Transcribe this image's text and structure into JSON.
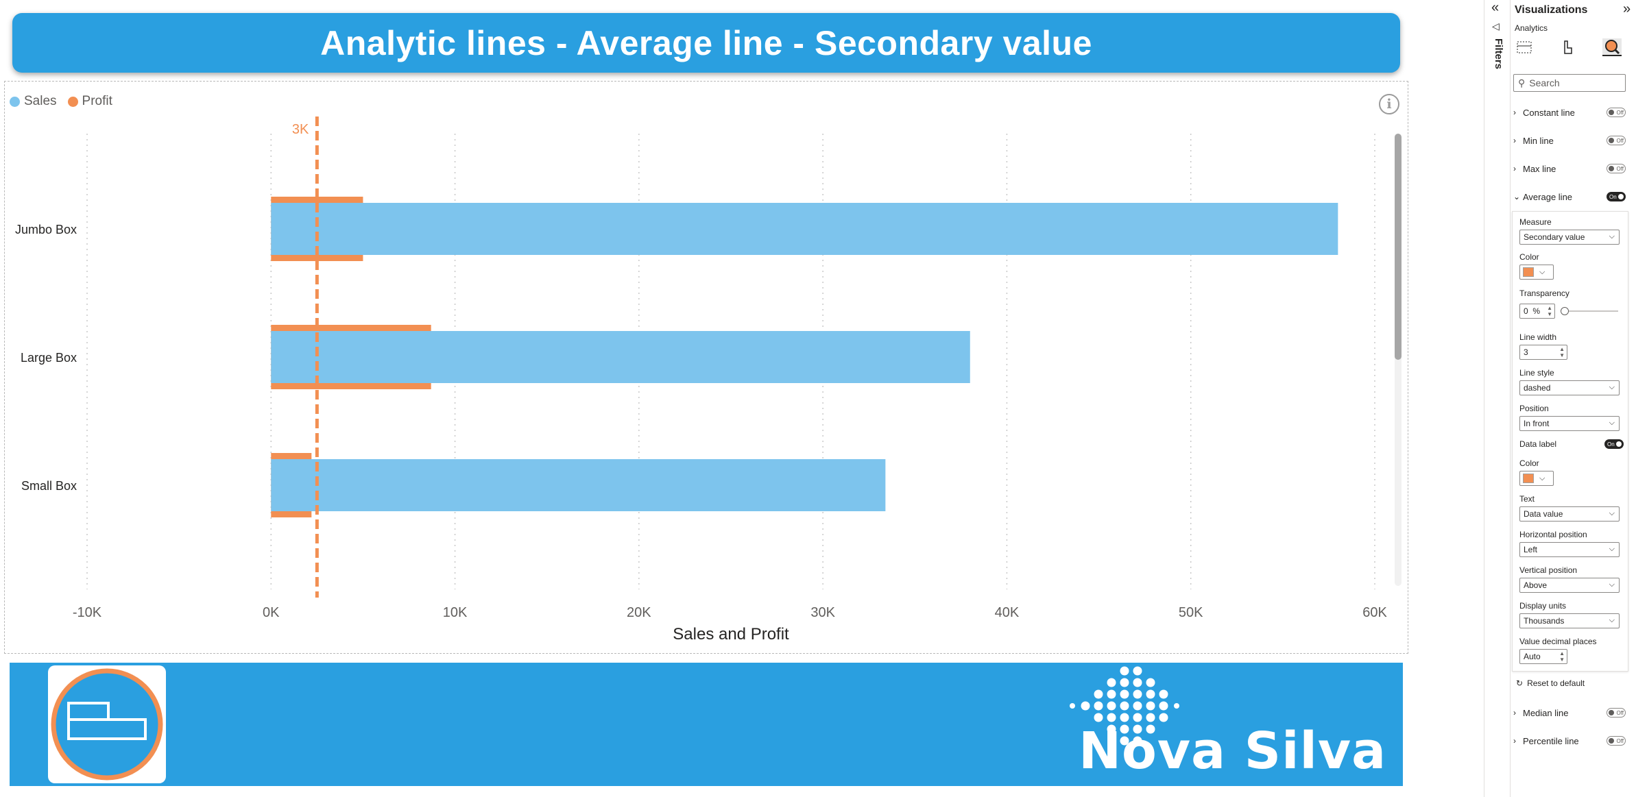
{
  "report": {
    "title": "Analytic lines - Average line - Secondary value"
  },
  "legend": {
    "items": [
      {
        "label": "Sales",
        "color": "#7dc4ed"
      },
      {
        "label": "Profit",
        "color": "#f28f52"
      }
    ]
  },
  "chart_data": {
    "type": "bar",
    "orientation": "horizontal",
    "categories": [
      "Jumbo Box",
      "Large Box",
      "Small Box"
    ],
    "series": [
      {
        "name": "Sales",
        "values": [
          58000,
          38000,
          33400
        ],
        "color": "#7dc4ed"
      },
      {
        "name": "Profit",
        "values": [
          5000,
          8700,
          2200
        ],
        "color": "#f28f52"
      }
    ],
    "xlabel": "Sales and Profit",
    "xlim": [
      -10000,
      60000
    ],
    "xticks": [
      -10000,
      0,
      10000,
      20000,
      30000,
      40000,
      50000,
      60000
    ],
    "xtick_labels": [
      "-10K",
      "0K",
      "10K",
      "20K",
      "30K",
      "40K",
      "50K",
      "60K"
    ],
    "grid": true,
    "reference_line": {
      "type": "average",
      "measure": "Secondary value",
      "value": 2500,
      "label": "3K",
      "style": "dashed",
      "color": "#f28f52"
    }
  },
  "footer": {
    "brand": "Nova Silva"
  },
  "filters_pane": {
    "label": "Filters"
  },
  "viz_pane": {
    "title": "Visualizations",
    "subtitle": "Analytics",
    "search_placeholder": "Search",
    "sections_top": [
      {
        "label": "Constant line",
        "state": "Off"
      },
      {
        "label": "Min line",
        "state": "Off"
      },
      {
        "label": "Max line",
        "state": "Off"
      },
      {
        "label": "Average line",
        "state": "On"
      }
    ],
    "average": {
      "measure_label": "Measure",
      "measure_value": "Secondary value",
      "color_label": "Color",
      "color": "#f28f52",
      "transparency_label": "Transparency",
      "transparency_value": "0",
      "transparency_unit": "%",
      "line_width_label": "Line width",
      "line_width_value": "3",
      "line_style_label": "Line style",
      "line_style_value": "dashed",
      "position_label": "Position",
      "position_value": "In front",
      "data_label_label": "Data label",
      "data_label_state": "On",
      "label_color_label": "Color",
      "label_color": "#f28f52",
      "text_label": "Text",
      "text_value": "Data value",
      "hpos_label": "Horizontal position",
      "hpos_value": "Left",
      "vpos_label": "Vertical position",
      "vpos_value": "Above",
      "units_label": "Display units",
      "units_value": "Thousands",
      "decimals_label": "Value decimal places",
      "decimals_value": "Auto"
    },
    "reset_label": "Reset to default",
    "sections_bottom": [
      {
        "label": "Median line",
        "state": "Off"
      },
      {
        "label": "Percentile line",
        "state": "Off"
      }
    ]
  }
}
